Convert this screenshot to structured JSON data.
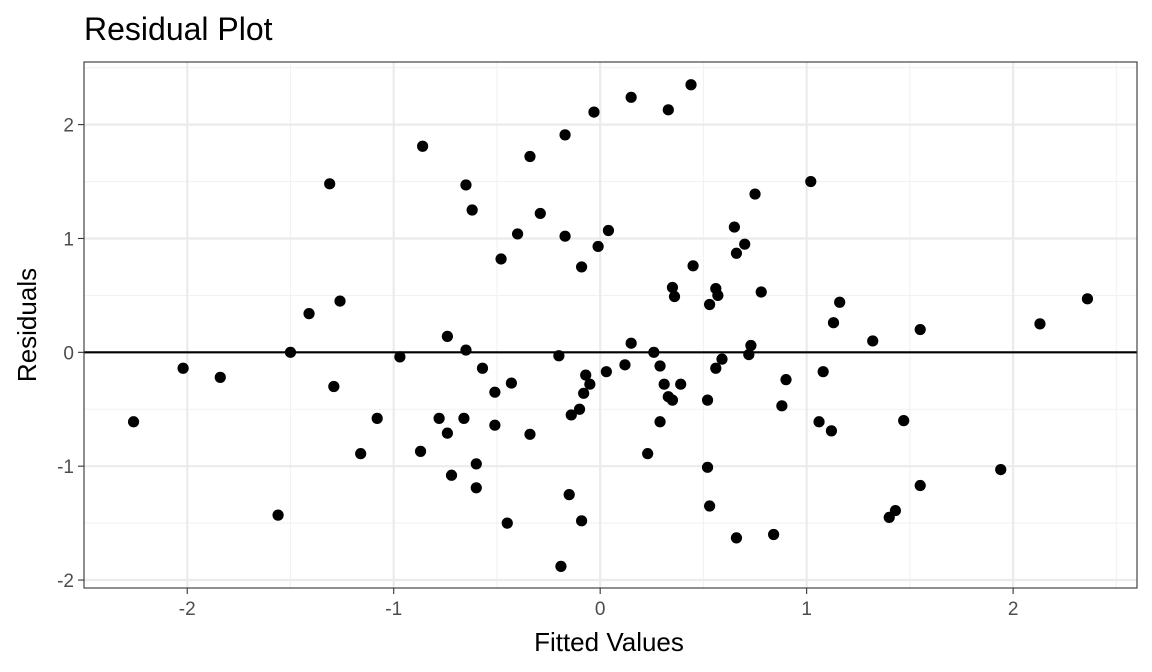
{
  "chart_data": {
    "type": "scatter",
    "title": "Residual Plot",
    "xlabel": "Fitted Values",
    "ylabel": "Residuals",
    "xlim": [
      -2.5,
      2.6
    ],
    "ylim": [
      -2.07,
      2.55
    ],
    "x_ticks": [
      -2,
      -1,
      0,
      1,
      2
    ],
    "y_ticks": [
      -2,
      -1,
      0,
      1,
      2
    ],
    "x_tick_labels": [
      "-2",
      "-1",
      "0",
      "1",
      "2"
    ],
    "y_tick_labels": [
      "-2",
      "-1",
      "0",
      "1",
      "2"
    ],
    "grid": true,
    "reference_line_y": 0,
    "point_color": "#000000",
    "points": [
      {
        "x": -2.26,
        "y": -0.61
      },
      {
        "x": -2.02,
        "y": -0.14
      },
      {
        "x": -1.84,
        "y": -0.22
      },
      {
        "x": -1.56,
        "y": -1.43
      },
      {
        "x": -1.5,
        "y": 0.0
      },
      {
        "x": -1.41,
        "y": 0.34
      },
      {
        "x": -1.31,
        "y": 1.48
      },
      {
        "x": -1.29,
        "y": -0.3
      },
      {
        "x": -1.26,
        "y": 0.45
      },
      {
        "x": -1.16,
        "y": -0.89
      },
      {
        "x": -1.08,
        "y": -0.58
      },
      {
        "x": -0.97,
        "y": -0.04
      },
      {
        "x": -0.87,
        "y": -0.87
      },
      {
        "x": -0.86,
        "y": 1.81
      },
      {
        "x": -0.78,
        "y": -0.58
      },
      {
        "x": -0.74,
        "y": 0.14
      },
      {
        "x": -0.74,
        "y": -0.71
      },
      {
        "x": -0.72,
        "y": -1.08
      },
      {
        "x": -0.66,
        "y": -0.58
      },
      {
        "x": -0.65,
        "y": 1.47
      },
      {
        "x": -0.65,
        "y": 0.02
      },
      {
        "x": -0.62,
        "y": 1.25
      },
      {
        "x": -0.6,
        "y": -0.98
      },
      {
        "x": -0.6,
        "y": -1.19
      },
      {
        "x": -0.57,
        "y": -0.14
      },
      {
        "x": -0.51,
        "y": -0.35
      },
      {
        "x": -0.51,
        "y": -0.64
      },
      {
        "x": -0.48,
        "y": 0.82
      },
      {
        "x": -0.45,
        "y": -1.5
      },
      {
        "x": -0.43,
        "y": -0.27
      },
      {
        "x": -0.4,
        "y": 1.04
      },
      {
        "x": -0.34,
        "y": 1.72
      },
      {
        "x": -0.34,
        "y": -0.72
      },
      {
        "x": -0.29,
        "y": 1.22
      },
      {
        "x": -0.2,
        "y": -0.03
      },
      {
        "x": -0.19,
        "y": -1.88
      },
      {
        "x": -0.17,
        "y": 1.91
      },
      {
        "x": -0.17,
        "y": 1.02
      },
      {
        "x": -0.15,
        "y": -1.25
      },
      {
        "x": -0.14,
        "y": -0.55
      },
      {
        "x": -0.1,
        "y": -0.5
      },
      {
        "x": -0.09,
        "y": 0.75
      },
      {
        "x": -0.09,
        "y": -1.48
      },
      {
        "x": -0.08,
        "y": -0.36
      },
      {
        "x": -0.07,
        "y": -0.2
      },
      {
        "x": -0.05,
        "y": -0.28
      },
      {
        "x": -0.03,
        "y": 2.11
      },
      {
        "x": -0.01,
        "y": 0.93
      },
      {
        "x": 0.03,
        "y": -0.17
      },
      {
        "x": 0.04,
        "y": 1.07
      },
      {
        "x": 0.12,
        "y": -0.11
      },
      {
        "x": 0.15,
        "y": 0.08
      },
      {
        "x": 0.15,
        "y": 2.24
      },
      {
        "x": 0.23,
        "y": -0.89
      },
      {
        "x": 0.26,
        "y": 0.0
      },
      {
        "x": 0.29,
        "y": -0.61
      },
      {
        "x": 0.29,
        "y": -0.12
      },
      {
        "x": 0.31,
        "y": -0.28
      },
      {
        "x": 0.33,
        "y": 2.13
      },
      {
        "x": 0.33,
        "y": -0.39
      },
      {
        "x": 0.35,
        "y": 0.57
      },
      {
        "x": 0.35,
        "y": -0.42
      },
      {
        "x": 0.36,
        "y": 0.49
      },
      {
        "x": 0.39,
        "y": -0.28
      },
      {
        "x": 0.44,
        "y": 2.35
      },
      {
        "x": 0.45,
        "y": 0.76
      },
      {
        "x": 0.52,
        "y": -0.42
      },
      {
        "x": 0.52,
        "y": -1.01
      },
      {
        "x": 0.53,
        "y": -1.35
      },
      {
        "x": 0.53,
        "y": 0.42
      },
      {
        "x": 0.56,
        "y": 0.56
      },
      {
        "x": 0.56,
        "y": -0.14
      },
      {
        "x": 0.57,
        "y": 0.5
      },
      {
        "x": 0.59,
        "y": -0.06
      },
      {
        "x": 0.65,
        "y": 1.1
      },
      {
        "x": 0.66,
        "y": 0.87
      },
      {
        "x": 0.66,
        "y": -1.63
      },
      {
        "x": 0.7,
        "y": 0.95
      },
      {
        "x": 0.72,
        "y": -0.02
      },
      {
        "x": 0.73,
        "y": 0.06
      },
      {
        "x": 0.75,
        "y": 1.39
      },
      {
        "x": 0.78,
        "y": 0.53
      },
      {
        "x": 0.84,
        "y": -1.6
      },
      {
        "x": 0.88,
        "y": -0.47
      },
      {
        "x": 0.9,
        "y": -0.24
      },
      {
        "x": 1.02,
        "y": 1.5
      },
      {
        "x": 1.06,
        "y": -0.61
      },
      {
        "x": 1.08,
        "y": -0.17
      },
      {
        "x": 1.12,
        "y": -0.69
      },
      {
        "x": 1.13,
        "y": 0.26
      },
      {
        "x": 1.16,
        "y": 0.44
      },
      {
        "x": 1.32,
        "y": 0.1
      },
      {
        "x": 1.4,
        "y": -1.45
      },
      {
        "x": 1.43,
        "y": -1.39
      },
      {
        "x": 1.47,
        "y": -0.6
      },
      {
        "x": 1.55,
        "y": 0.2
      },
      {
        "x": 1.55,
        "y": -1.17
      },
      {
        "x": 1.94,
        "y": -1.03
      },
      {
        "x": 2.13,
        "y": 0.25
      },
      {
        "x": 2.36,
        "y": 0.47
      }
    ]
  }
}
